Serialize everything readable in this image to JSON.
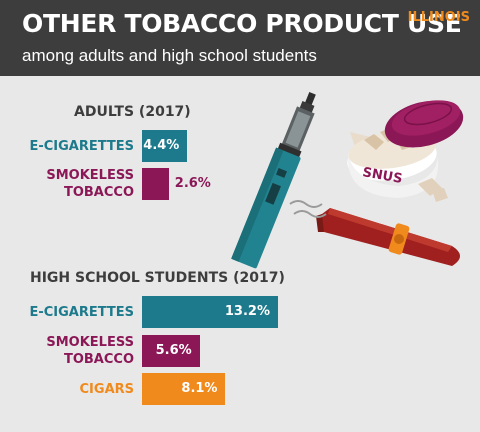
{
  "header": {
    "title": "OTHER TOBACCO PRODUCT USE",
    "subtitle": "among adults and high school students",
    "state": "ILLINOIS"
  },
  "illustration": {
    "snus_label": "SNUS"
  },
  "colors": {
    "teal": "#1d7a8c",
    "maroon": "#8b1757",
    "orange": "#f08a1d",
    "header_bg": "#3d3d3d",
    "background": "#e8e8e8"
  },
  "chart_data": [
    {
      "type": "bar",
      "orientation": "horizontal",
      "title": "ADULTS (2017)",
      "categories": [
        "E-CIGARETTES",
        "SMOKELESS TOBACCO"
      ],
      "category_lines": [
        [
          "E-CIGARETTES"
        ],
        [
          "SMOKELESS",
          "TOBACCO"
        ]
      ],
      "values": [
        4.4,
        2.6
      ],
      "value_labels": [
        "4.4%",
        "2.6%"
      ],
      "colors": [
        "#1d7a8c",
        "#8b1757"
      ],
      "value_inside": [
        true,
        false
      ],
      "units": "%"
    },
    {
      "type": "bar",
      "orientation": "horizontal",
      "title": "HIGH SCHOOL STUDENTS (2017)",
      "categories": [
        "E-CIGARETTES",
        "SMOKELESS TOBACCO",
        "CIGARS"
      ],
      "category_lines": [
        [
          "E-CIGARETTES"
        ],
        [
          "SMOKELESS",
          "TOBACCO"
        ],
        [
          "CIGARS"
        ]
      ],
      "values": [
        13.2,
        5.6,
        8.1
      ],
      "value_labels": [
        "13.2%",
        "5.6%",
        "8.1%"
      ],
      "colors": [
        "#1d7a8c",
        "#8b1757",
        "#f08a1d"
      ],
      "value_inside": [
        true,
        true,
        true
      ],
      "units": "%"
    }
  ]
}
